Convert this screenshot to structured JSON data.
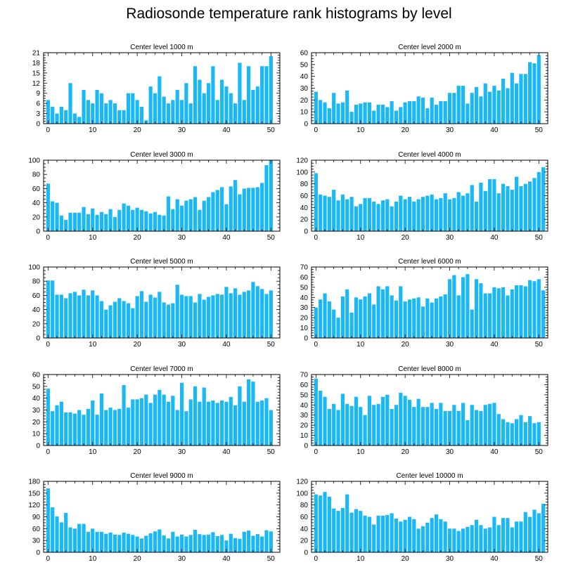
{
  "title": "Radiosonde temperature rank histograms by level",
  "colors": {
    "bar": "#1ab8f5",
    "axis": "#000000"
  },
  "chart_data": [
    {
      "type": "bar",
      "title": "Center level 1000 m",
      "xlim": [
        -1,
        52
      ],
      "xticks": [
        0,
        10,
        20,
        30,
        40,
        50
      ],
      "ylim": [
        0,
        21
      ],
      "yticks": [
        0,
        3,
        6,
        9,
        12,
        15,
        18,
        21
      ],
      "values": [
        7,
        5,
        3,
        5,
        4,
        12,
        3,
        2,
        10,
        7,
        6,
        10,
        9,
        6,
        7,
        6,
        4,
        4,
        9,
        9,
        7,
        5,
        1,
        11,
        9,
        14,
        8,
        6,
        7,
        10,
        7,
        12,
        6,
        17,
        13,
        9,
        12,
        17,
        7,
        13,
        11,
        9,
        6,
        18,
        7,
        17,
        10,
        11,
        17,
        17,
        20
      ]
    },
    {
      "type": "bar",
      "title": "Center level 2000 m",
      "xlim": [
        -1,
        52
      ],
      "xticks": [
        0,
        10,
        20,
        30,
        40,
        50
      ],
      "ylim": [
        0,
        60
      ],
      "yticks": [
        0,
        10,
        20,
        30,
        40,
        50,
        60
      ],
      "values": [
        27,
        20,
        18,
        13,
        26,
        17,
        18,
        28,
        10,
        16,
        17,
        18,
        18,
        11,
        16,
        16,
        14,
        19,
        11,
        14,
        18,
        19,
        19,
        23,
        22,
        13,
        22,
        16,
        19,
        19,
        26,
        26,
        32,
        32,
        17,
        26,
        31,
        23,
        34,
        27,
        32,
        28,
        38,
        30,
        43,
        34,
        42,
        42,
        52,
        51,
        58
      ]
    },
    {
      "type": "bar",
      "title": "Center level 3000 m",
      "xlim": [
        -1,
        52
      ],
      "xticks": [
        0,
        10,
        20,
        30,
        40,
        50
      ],
      "ylim": [
        0,
        100
      ],
      "yticks": [
        0,
        20,
        40,
        60,
        80,
        100
      ],
      "values": [
        67,
        42,
        40,
        22,
        16,
        26,
        26,
        26,
        34,
        24,
        32,
        23,
        27,
        24,
        31,
        20,
        30,
        39,
        36,
        30,
        33,
        30,
        28,
        25,
        27,
        23,
        22,
        49,
        31,
        45,
        36,
        43,
        45,
        48,
        30,
        43,
        48,
        55,
        58,
        62,
        38,
        63,
        72,
        52,
        60,
        61,
        61,
        62,
        68,
        93,
        100
      ]
    },
    {
      "type": "bar",
      "title": "Center level 4000 m",
      "xlim": [
        -1,
        52
      ],
      "xticks": [
        0,
        10,
        20,
        30,
        40,
        50
      ],
      "ylim": [
        0,
        120
      ],
      "yticks": [
        0,
        20,
        40,
        60,
        80,
        100,
        120
      ],
      "values": [
        98,
        62,
        60,
        58,
        70,
        52,
        62,
        54,
        58,
        42,
        46,
        56,
        56,
        50,
        46,
        52,
        54,
        42,
        50,
        60,
        54,
        58,
        50,
        54,
        58,
        60,
        62,
        54,
        56,
        64,
        54,
        56,
        66,
        60,
        64,
        78,
        50,
        82,
        68,
        88,
        88,
        64,
        80,
        76,
        70,
        92,
        76,
        80,
        84,
        90,
        100,
        108
      ]
    },
    {
      "type": "bar",
      "title": "Center level 5000 m",
      "xlim": [
        -1,
        52
      ],
      "xticks": [
        0,
        10,
        20,
        30,
        40,
        50
      ],
      "ylim": [
        0,
        100
      ],
      "yticks": [
        0,
        20,
        40,
        60,
        80,
        100
      ],
      "values": [
        81,
        81,
        61,
        61,
        56,
        63,
        65,
        60,
        68,
        60,
        67,
        60,
        52,
        40,
        46,
        51,
        56,
        52,
        49,
        42,
        59,
        66,
        51,
        61,
        57,
        65,
        50,
        47,
        49,
        75,
        61,
        59,
        59,
        50,
        62,
        54,
        58,
        60,
        62,
        61,
        72,
        63,
        70,
        61,
        65,
        67,
        79,
        73,
        69,
        62,
        67
      ]
    },
    {
      "type": "bar",
      "title": "Center level 6000 m",
      "xlim": [
        -1,
        52
      ],
      "xticks": [
        0,
        10,
        20,
        30,
        40,
        50
      ],
      "ylim": [
        0,
        70
      ],
      "yticks": [
        0,
        10,
        20,
        30,
        40,
        50,
        60,
        70
      ],
      "values": [
        30,
        38,
        44,
        36,
        28,
        20,
        41,
        48,
        25,
        40,
        38,
        41,
        44,
        33,
        51,
        48,
        51,
        42,
        37,
        51,
        36,
        38,
        39,
        40,
        31,
        39,
        35,
        39,
        41,
        43,
        58,
        62,
        42,
        60,
        63,
        28,
        58,
        54,
        44,
        44,
        50,
        49,
        50,
        42,
        48,
        52,
        52,
        51,
        57,
        56,
        58,
        47
      ]
    },
    {
      "type": "bar",
      "title": "Center level 7000 m",
      "xlim": [
        -1,
        52
      ],
      "xticks": [
        0,
        10,
        20,
        30,
        40,
        50
      ],
      "ylim": [
        0,
        60
      ],
      "yticks": [
        0,
        10,
        20,
        30,
        40,
        50,
        60
      ],
      "values": [
        48,
        29,
        34,
        37,
        28,
        28,
        27,
        30,
        26,
        31,
        38,
        26,
        44,
        30,
        32,
        30,
        31,
        51,
        32,
        39,
        39,
        40,
        43,
        36,
        43,
        47,
        43,
        37,
        42,
        30,
        53,
        29,
        39,
        50,
        37,
        49,
        37,
        38,
        36,
        38,
        37,
        41,
        34,
        50,
        37,
        56,
        54,
        37,
        38,
        40,
        30
      ]
    },
    {
      "type": "bar",
      "title": "Center level 8000 m",
      "xlim": [
        -1,
        52
      ],
      "xticks": [
        0,
        10,
        20,
        30,
        40,
        50
      ],
      "ylim": [
        0,
        70
      ],
      "yticks": [
        0,
        10,
        20,
        30,
        40,
        50,
        60,
        70
      ],
      "values": [
        66,
        54,
        48,
        36,
        41,
        35,
        51,
        41,
        39,
        48,
        38,
        30,
        49,
        40,
        41,
        48,
        50,
        36,
        40,
        52,
        49,
        45,
        38,
        46,
        38,
        38,
        42,
        36,
        42,
        34,
        34,
        40,
        34,
        42,
        25,
        40,
        35,
        34,
        40,
        41,
        42,
        31,
        26,
        23,
        22,
        26,
        30,
        23,
        29,
        22,
        23
      ]
    },
    {
      "type": "bar",
      "title": "Center level 9000 m",
      "xlim": [
        -1,
        52
      ],
      "xticks": [
        0,
        10,
        20,
        30,
        40,
        50
      ],
      "ylim": [
        0,
        180
      ],
      "yticks": [
        0,
        30,
        60,
        90,
        120,
        150,
        180
      ],
      "values": [
        162,
        114,
        91,
        76,
        100,
        63,
        60,
        72,
        72,
        52,
        60,
        52,
        52,
        47,
        50,
        45,
        44,
        50,
        47,
        44,
        40,
        35,
        42,
        48,
        53,
        58,
        43,
        35,
        52,
        40,
        45,
        40,
        44,
        57,
        46,
        44,
        45,
        51,
        41,
        44,
        30,
        47,
        36,
        34,
        52,
        55,
        42,
        46,
        40,
        56,
        53
      ]
    },
    {
      "type": "bar",
      "title": "Center level 10000 m",
      "xlim": [
        -1,
        52
      ],
      "xticks": [
        0,
        10,
        20,
        30,
        40,
        50
      ],
      "ylim": [
        0,
        120
      ],
      "yticks": [
        0,
        20,
        40,
        60,
        80,
        100,
        120
      ],
      "values": [
        98,
        96,
        102,
        94,
        74,
        70,
        75,
        98,
        67,
        73,
        70,
        62,
        60,
        47,
        62,
        62,
        63,
        66,
        57,
        52,
        55,
        60,
        56,
        40,
        44,
        50,
        58,
        64,
        56,
        52,
        40,
        40,
        36,
        40,
        43,
        46,
        55,
        46,
        40,
        42,
        60,
        46,
        58,
        58,
        42,
        52,
        52,
        68,
        60,
        72,
        66,
        82
      ]
    }
  ]
}
